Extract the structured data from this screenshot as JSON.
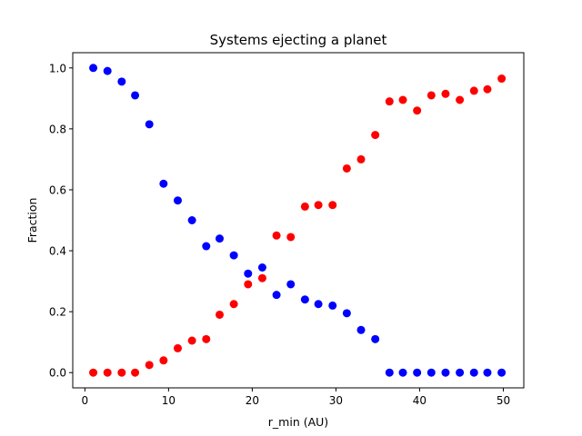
{
  "chart_data": {
    "type": "scatter",
    "title": "Systems ejecting a planet",
    "xlabel": "r_min (AU)",
    "ylabel": "Fraction",
    "xlim": [
      -1.45,
      52.45
    ],
    "ylim": [
      -0.05,
      1.05
    ],
    "xticks": [
      0,
      10,
      20,
      30,
      40,
      50
    ],
    "yticks": [
      0.0,
      0.2,
      0.4,
      0.6,
      0.8,
      1.0
    ],
    "ytick_labels": [
      "0.0",
      "0.2",
      "0.4",
      "0.6",
      "0.8",
      "1.0"
    ],
    "grid": false,
    "series": [
      {
        "color": "#0000ff",
        "x": [
          1.0,
          2.7,
          4.4,
          6.0,
          7.7,
          9.4,
          11.1,
          12.8,
          14.5,
          16.1,
          17.8,
          19.5,
          21.2,
          22.9,
          24.6,
          26.3,
          27.9,
          29.6,
          31.3,
          33.0,
          34.7,
          36.4,
          38.0,
          39.7,
          41.4,
          43.1,
          44.8,
          46.5,
          48.1,
          49.8
        ],
        "y": [
          1.0,
          0.99,
          0.955,
          0.91,
          0.815,
          0.62,
          0.565,
          0.5,
          0.415,
          0.44,
          0.385,
          0.325,
          0.345,
          0.255,
          0.29,
          0.24,
          0.225,
          0.22,
          0.195,
          0.14,
          0.11,
          0.0,
          0.0,
          0.0,
          0.0,
          0.0,
          0.0,
          0.0,
          0.0,
          0.0
        ]
      },
      {
        "color": "#ff0000",
        "x": [
          1.0,
          2.7,
          4.4,
          6.0,
          7.7,
          9.4,
          11.1,
          12.8,
          14.5,
          16.1,
          17.8,
          19.5,
          21.2,
          22.9,
          24.6,
          26.3,
          27.9,
          29.6,
          31.3,
          33.0,
          34.7,
          36.4,
          38.0,
          39.7,
          41.4,
          43.1,
          44.8,
          46.5,
          48.1,
          49.8
        ],
        "y": [
          0.0,
          0.0,
          0.0,
          0.0,
          0.025,
          0.04,
          0.08,
          0.105,
          0.11,
          0.19,
          0.225,
          0.29,
          0.31,
          0.45,
          0.445,
          0.545,
          0.55,
          0.55,
          0.67,
          0.7,
          0.78,
          0.89,
          0.895,
          0.86,
          0.91,
          0.915,
          0.895,
          0.925,
          0.93,
          0.965
        ]
      }
    ]
  }
}
